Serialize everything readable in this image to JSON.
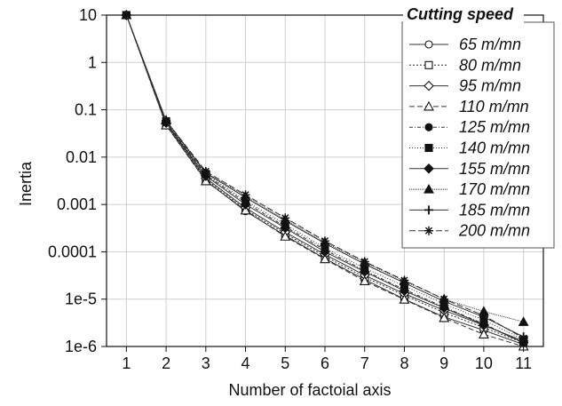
{
  "chart_data": {
    "type": "line",
    "xlabel": "Number of factoial axis",
    "ylabel": "Inertia",
    "yscale": "log",
    "xlim": [
      0.5,
      11.5
    ],
    "ylim": [
      1e-06,
      10
    ],
    "grid": true,
    "x": [
      1,
      2,
      3,
      4,
      5,
      6,
      7,
      8,
      9,
      10,
      11
    ],
    "xticks": [
      "1",
      "2",
      "3",
      "4",
      "5",
      "6",
      "7",
      "8",
      "9",
      "10",
      "11"
    ],
    "yticks": [
      {
        "value": 10,
        "label": "10"
      },
      {
        "value": 1,
        "label": "1"
      },
      {
        "value": 0.1,
        "label": "0.1"
      },
      {
        "value": 0.01,
        "label": "0.01"
      },
      {
        "value": 0.001,
        "label": "0.001"
      },
      {
        "value": 0.0001,
        "label": "0.0001"
      },
      {
        "value": 1e-05,
        "label": "1e-5"
      },
      {
        "value": 1e-06,
        "label": "1e-6"
      }
    ],
    "legend": {
      "title": "Cutting speed",
      "placement": "top-right"
    },
    "series": [
      {
        "name": "65 m/mn",
        "marker": "circle-open",
        "dash": "",
        "values": [
          10,
          0.048,
          0.0032,
          0.00072,
          0.00022,
          7.2e-05,
          2.6e-05,
          1e-05,
          4.2e-06,
          2.2e-06,
          1.1e-06
        ]
      },
      {
        "name": "80 m/mn",
        "marker": "square-open",
        "dash": "2,2",
        "values": [
          10,
          0.05,
          0.0034,
          0.00078,
          0.00024,
          8e-05,
          2.9e-05,
          1.2e-05,
          5.2e-06,
          2.5e-06,
          1.2e-06
        ]
      },
      {
        "name": "95 m/mn",
        "marker": "diamond-open",
        "dash": "",
        "values": [
          10,
          0.052,
          0.0036,
          0.00085,
          0.00026,
          8.8e-05,
          3.2e-05,
          1.3e-05,
          5.8e-06,
          2.8e-06,
          1.3e-06
        ]
      },
      {
        "name": "110 m/mn",
        "marker": "triangle-open",
        "dash": "6,3",
        "values": [
          10,
          0.047,
          0.0031,
          0.00075,
          0.00021,
          7e-05,
          2.4e-05,
          9.8e-06,
          4e-06,
          1.8e-06,
          1e-06
        ]
      },
      {
        "name": "125 m/mn",
        "marker": "circle",
        "dash": "4,2,1,2",
        "values": [
          10,
          0.055,
          0.0042,
          0.0011,
          0.00034,
          0.00011,
          4e-05,
          1.6e-05,
          6.8e-06,
          3e-06,
          1.2e-06
        ]
      },
      {
        "name": "140 m/mn",
        "marker": "square",
        "dash": "1,2",
        "values": [
          10,
          0.057,
          0.0044,
          0.0012,
          0.00038,
          0.00012,
          4.5e-05,
          1.9e-05,
          8e-06,
          3.6e-06,
          1.4e-06
        ]
      },
      {
        "name": "155 m/mn",
        "marker": "diamond",
        "dash": "",
        "values": [
          10,
          0.053,
          0.004,
          0.001,
          0.00032,
          0.0001,
          3.8e-05,
          1.5e-05,
          6.5e-06,
          2.9e-06,
          1.2e-06
        ]
      },
      {
        "name": "170 m/mn",
        "marker": "triangle",
        "dash": "1,1",
        "values": [
          10,
          0.06,
          0.0048,
          0.0015,
          0.00048,
          0.00016,
          6e-05,
          2.4e-05,
          1e-05,
          5.5e-06,
          3.3e-06
        ]
      },
      {
        "name": "185 m/mn",
        "marker": "plus",
        "dash": "",
        "values": [
          10,
          0.058,
          0.0046,
          0.0014,
          0.00045,
          0.00015,
          5.5e-05,
          2.2e-05,
          9e-06,
          4.2e-06,
          1.6e-06
        ]
      },
      {
        "name": "200 m/mn",
        "marker": "star",
        "dash": "7,3",
        "values": [
          10,
          0.059,
          0.005,
          0.0016,
          0.00052,
          0.00017,
          6.2e-05,
          2.5e-05,
          1e-05,
          4.5e-06,
          1.5e-06
        ]
      }
    ]
  }
}
